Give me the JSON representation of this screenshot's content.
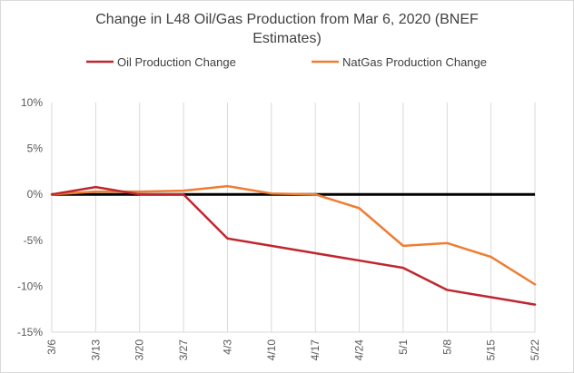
{
  "chart_data": {
    "type": "line",
    "title_line1": "Change in L48 Oil/Gas Production from Mar 6, 2020 (BNEF",
    "title_line2": "Estimates)",
    "categories": [
      "3/6",
      "3/13",
      "3/20",
      "3/27",
      "4/3",
      "4/10",
      "4/17",
      "4/24",
      "5/1",
      "5/8",
      "5/15",
      "5/22"
    ],
    "series": [
      {
        "name": "Oil Production Change",
        "color": "#c0262d",
        "values": [
          0.0,
          0.8,
          0.0,
          0.0,
          -4.8,
          -5.6,
          -6.4,
          -7.2,
          -8.0,
          -10.4,
          -11.2,
          -12.0
        ]
      },
      {
        "name": "NatGas Production Change",
        "color": "#ef7d32",
        "values": [
          0.0,
          0.3,
          0.3,
          0.4,
          0.9,
          0.1,
          0.0,
          -1.5,
          -5.6,
          -5.3,
          -6.8,
          -9.8
        ]
      }
    ],
    "ylim": [
      -15,
      10
    ],
    "yticks": [
      10,
      5,
      0,
      -5,
      -10,
      -15
    ],
    "ytick_labels": [
      "10%",
      "5%",
      "0%",
      "-5%",
      "-10%",
      "-15%"
    ],
    "grid": "vertical",
    "zero_line": true,
    "legend_position": "top"
  }
}
